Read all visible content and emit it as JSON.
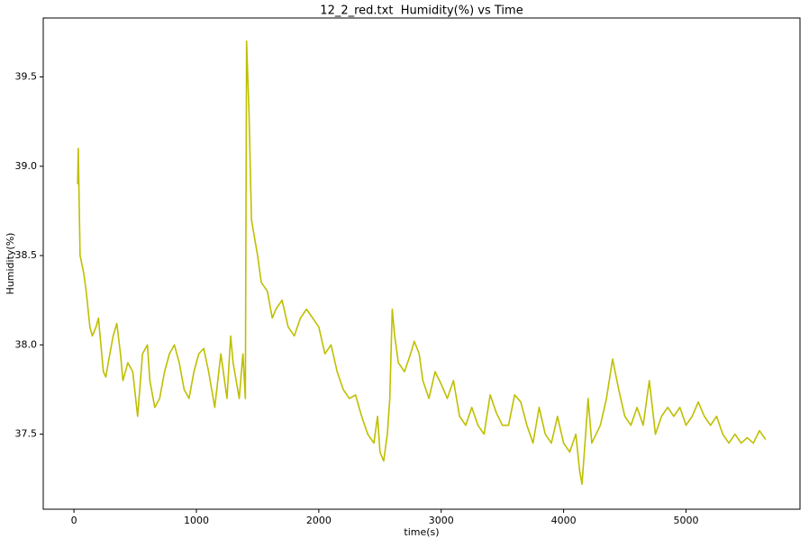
{
  "chart_data": {
    "type": "line",
    "title": "12_2_red.txt  Humidity(%) vs Time",
    "x_label": "time(s)",
    "y_label": "Humidity(%)",
    "color": "#bfbf00",
    "x": [
      30,
      35,
      40,
      50,
      80,
      100,
      130,
      150,
      180,
      200,
      220,
      240,
      260,
      280,
      320,
      350,
      380,
      400,
      440,
      480,
      520,
      560,
      600,
      620,
      660,
      700,
      740,
      780,
      820,
      860,
      900,
      940,
      980,
      1020,
      1060,
      1100,
      1150,
      1200,
      1250,
      1280,
      1300,
      1350,
      1380,
      1400,
      1410,
      1430,
      1450,
      1500,
      1530,
      1580,
      1620,
      1650,
      1700,
      1750,
      1800,
      1850,
      1900,
      1950,
      2000,
      2050,
      2100,
      2150,
      2200,
      2250,
      2300,
      2350,
      2400,
      2450,
      2480,
      2500,
      2530,
      2560,
      2580,
      2600,
      2620,
      2650,
      2700,
      2750,
      2780,
      2820,
      2850,
      2900,
      2950,
      3000,
      3050,
      3100,
      3150,
      3200,
      3250,
      3300,
      3350,
      3400,
      3450,
      3500,
      3550,
      3600,
      3650,
      3700,
      3750,
      3800,
      3850,
      3900,
      3950,
      4000,
      4050,
      4100,
      4130,
      4150,
      4180,
      4200,
      4230,
      4300,
      4350,
      4400,
      4450,
      4500,
      4550,
      4600,
      4650,
      4700,
      4750,
      4800,
      4850,
      4900,
      4950,
      5000,
      5050,
      5100,
      5150,
      5200,
      5250,
      5300,
      5350,
      5400,
      5450,
      5500,
      5550,
      5600,
      5650
    ],
    "y": [
      38.9,
      39.1,
      38.9,
      38.5,
      38.4,
      38.3,
      38.1,
      38.05,
      38.1,
      38.15,
      38.0,
      37.85,
      37.82,
      37.9,
      38.05,
      38.12,
      37.95,
      37.8,
      37.9,
      37.85,
      37.6,
      37.95,
      38.0,
      37.8,
      37.65,
      37.7,
      37.85,
      37.95,
      38.0,
      37.9,
      37.75,
      37.7,
      37.85,
      37.95,
      37.98,
      37.85,
      37.65,
      37.95,
      37.7,
      38.05,
      37.9,
      37.7,
      37.95,
      37.7,
      39.7,
      39.3,
      38.7,
      38.5,
      38.35,
      38.3,
      38.15,
      38.2,
      38.25,
      38.1,
      38.05,
      38.15,
      38.2,
      38.15,
      38.1,
      37.95,
      38.0,
      37.85,
      37.75,
      37.7,
      37.72,
      37.6,
      37.5,
      37.45,
      37.6,
      37.4,
      37.35,
      37.5,
      37.7,
      38.2,
      38.05,
      37.9,
      37.85,
      37.95,
      38.02,
      37.95,
      37.8,
      37.7,
      37.85,
      37.78,
      37.7,
      37.8,
      37.6,
      37.55,
      37.65,
      37.55,
      37.5,
      37.72,
      37.62,
      37.55,
      37.55,
      37.72,
      37.68,
      37.55,
      37.45,
      37.65,
      37.5,
      37.45,
      37.6,
      37.45,
      37.4,
      37.5,
      37.3,
      37.22,
      37.5,
      37.7,
      37.45,
      37.55,
      37.7,
      37.92,
      37.75,
      37.6,
      37.55,
      37.65,
      37.55,
      37.8,
      37.5,
      37.6,
      37.65,
      37.6,
      37.65,
      37.55,
      37.6,
      37.68,
      37.6,
      37.55,
      37.6,
      37.5,
      37.45,
      37.5,
      37.45,
      37.48,
      37.45,
      37.52,
      37.47
    ],
    "xlim": [
      -251,
      5931
    ],
    "ylim": [
      37.08,
      39.83
    ],
    "xticks": [
      0,
      1000,
      2000,
      3000,
      4000,
      5000
    ],
    "yticks": [
      37.5,
      {
        "value": 38,
        "label": "38.0"
      },
      38.5,
      {
        "value": 39,
        "label": "39.0"
      },
      39.5
    ]
  }
}
